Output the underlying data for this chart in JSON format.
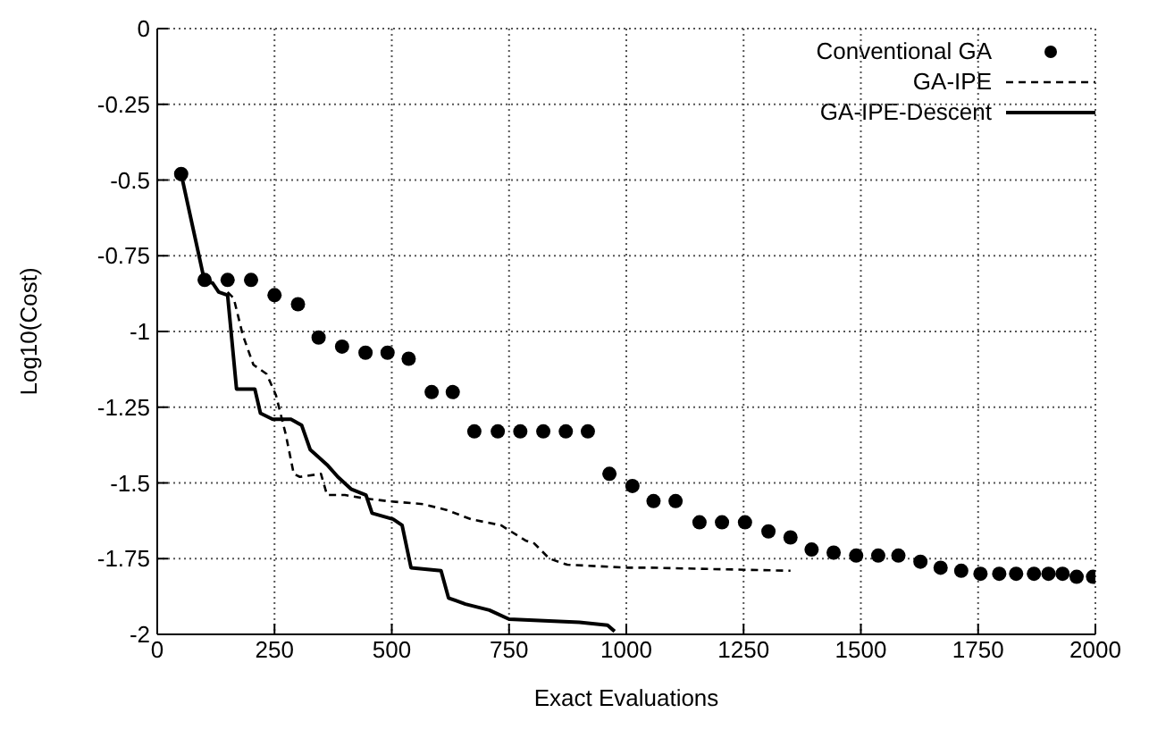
{
  "chart_data": {
    "type": "line",
    "xlabel": "Exact Evaluations",
    "ylabel": "Log10(Cost)",
    "xlim": [
      0,
      2000
    ],
    "xticks": [
      0,
      250,
      500,
      750,
      1000,
      1250,
      1500,
      1750,
      2000
    ],
    "ylim": [
      -2,
      0
    ],
    "yticks": [
      -2,
      -1.75,
      -1.5,
      -1.25,
      -1,
      -0.75,
      -0.5,
      -0.25,
      0
    ],
    "grid": true,
    "legend": "top right",
    "series": [
      {
        "name": "Conventional GA",
        "type": "scatter",
        "marker": "circle",
        "color": "#000000",
        "x": [
          51,
          101,
          150,
          200,
          250,
          300,
          344,
          394,
          444,
          491,
          536,
          585,
          630,
          676,
          726,
          774,
          823,
          871,
          918,
          964,
          1013,
          1058,
          1105,
          1156,
          1204,
          1253,
          1303,
          1350,
          1395,
          1442,
          1490,
          1537,
          1580,
          1627,
          1670,
          1714,
          1755,
          1795,
          1831,
          1869,
          1900,
          1930,
          1960,
          1995
        ],
        "values": [
          -0.48,
          -0.83,
          -0.83,
          -0.83,
          -0.88,
          -0.91,
          -1.02,
          -1.05,
          -1.07,
          -1.07,
          -1.09,
          -1.2,
          -1.2,
          -1.33,
          -1.33,
          -1.33,
          -1.33,
          -1.33,
          -1.33,
          -1.47,
          -1.51,
          -1.56,
          -1.56,
          -1.63,
          -1.63,
          -1.63,
          -1.66,
          -1.68,
          -1.72,
          -1.73,
          -1.74,
          -1.74,
          -1.74,
          -1.76,
          -1.78,
          -1.79,
          -1.8,
          -1.8,
          -1.8,
          -1.8,
          -1.8,
          -1.8,
          -1.81,
          -1.81
        ]
      },
      {
        "name": "GA-IPE",
        "type": "line",
        "line_style": "dashed",
        "marker": "none",
        "color": "#000000",
        "x": [
          150,
          163,
          182,
          205,
          233,
          253,
          274,
          291,
          304,
          349,
          362,
          400,
          438,
          490,
          567,
          618,
          669,
          733,
          785,
          804,
          836,
          874,
          1003,
          1054,
          1350
        ],
        "values": [
          -0.87,
          -0.89,
          -1.01,
          -1.11,
          -1.14,
          -1.21,
          -1.34,
          -1.47,
          -1.48,
          -1.47,
          -1.54,
          -1.54,
          -1.55,
          -1.56,
          -1.57,
          -1.59,
          -1.62,
          -1.64,
          -1.69,
          -1.7,
          -1.75,
          -1.77,
          -1.78,
          -1.78,
          -1.79
        ]
      },
      {
        "name": "GA-IPE-Descent",
        "type": "line",
        "line_style": "solid",
        "marker": "none",
        "color": "#000000",
        "x": [
          51,
          101,
          118,
          131,
          150,
          169,
          208,
          220,
          246,
          285,
          308,
          326,
          362,
          385,
          413,
          445,
          458,
          503,
          522,
          541,
          605,
          621,
          657,
          708,
          750,
          900,
          960,
          975
        ],
        "values": [
          -0.48,
          -0.835,
          -0.84,
          -0.87,
          -0.88,
          -1.19,
          -1.19,
          -1.27,
          -1.29,
          -1.29,
          -1.31,
          -1.39,
          -1.44,
          -1.48,
          -1.52,
          -1.54,
          -1.6,
          -1.62,
          -1.64,
          -1.78,
          -1.79,
          -1.88,
          -1.9,
          -1.92,
          -1.95,
          -1.96,
          -1.97,
          -1.99
        ]
      }
    ]
  }
}
